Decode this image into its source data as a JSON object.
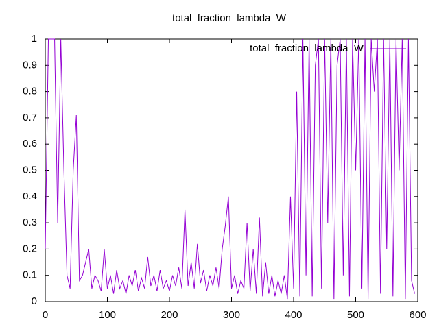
{
  "chart_data": {
    "type": "line",
    "title": "total_fraction_lambda_W",
    "x": [
      0,
      5,
      10,
      15,
      20,
      25,
      30,
      35,
      40,
      45,
      50,
      55,
      60,
      65,
      70,
      75,
      80,
      85,
      90,
      95,
      100,
      105,
      110,
      115,
      120,
      125,
      130,
      135,
      140,
      145,
      150,
      155,
      160,
      165,
      170,
      175,
      180,
      185,
      190,
      195,
      200,
      205,
      210,
      215,
      220,
      225,
      230,
      235,
      240,
      245,
      250,
      255,
      260,
      265,
      270,
      275,
      280,
      285,
      290,
      295,
      300,
      305,
      310,
      315,
      320,
      325,
      330,
      335,
      340,
      345,
      350,
      355,
      360,
      365,
      370,
      375,
      380,
      385,
      390,
      395,
      400,
      405,
      410,
      415,
      420,
      425,
      430,
      435,
      440,
      445,
      450,
      455,
      460,
      465,
      470,
      475,
      480,
      485,
      490,
      495,
      500,
      505,
      510,
      515,
      520,
      525,
      530,
      535,
      540,
      545,
      550,
      555,
      560,
      565,
      570,
      575,
      580,
      585,
      590,
      595
    ],
    "series": [
      {
        "name": "total_fraction_lambda_W",
        "color": "#9400d3",
        "values": [
          0.2,
          1,
          1,
          1,
          0.3,
          1,
          0.5,
          0.1,
          0.05,
          0.5,
          0.71,
          0.08,
          0.1,
          0.15,
          0.2,
          0.05,
          0.1,
          0.08,
          0.04,
          0.2,
          0.05,
          0.1,
          0.03,
          0.12,
          0.05,
          0.08,
          0.03,
          0.1,
          0.06,
          0.12,
          0.04,
          0.09,
          0.05,
          0.17,
          0.06,
          0.1,
          0.04,
          0.12,
          0.05,
          0.08,
          0.04,
          0.1,
          0.06,
          0.13,
          0.05,
          0.35,
          0.06,
          0.15,
          0.05,
          0.22,
          0.07,
          0.12,
          0.04,
          0.1,
          0.06,
          0.13,
          0.05,
          0.2,
          0.29,
          0.4,
          0.05,
          0.1,
          0.03,
          0.08,
          0.05,
          0.3,
          0.04,
          0.2,
          0.03,
          0.32,
          0.02,
          0.15,
          0.03,
          0.1,
          0.02,
          0.08,
          0.03,
          0.1,
          0.01,
          0.4,
          0.05,
          0.8,
          0.02,
          1,
          0.1,
          1,
          0.02,
          0.9,
          1,
          0.05,
          1,
          0.3,
          1,
          0.01,
          0.9,
          1,
          0.1,
          1,
          0.02,
          1,
          0.5,
          1,
          0.05,
          1,
          0.01,
          1,
          0.8,
          1,
          0.03,
          1,
          0.2,
          1,
          0.02,
          1,
          0.5,
          1,
          0.01,
          1,
          0.08,
          0.03
        ]
      }
    ],
    "xlim": [
      0,
      600
    ],
    "xticks": [
      0,
      100,
      200,
      300,
      400,
      500,
      600
    ],
    "ylim": [
      0,
      1
    ],
    "yticks": [
      0,
      0.1,
      0.2,
      0.3,
      0.4,
      0.5,
      0.6,
      0.7,
      0.8,
      0.9,
      1
    ],
    "legend": "top-right"
  }
}
